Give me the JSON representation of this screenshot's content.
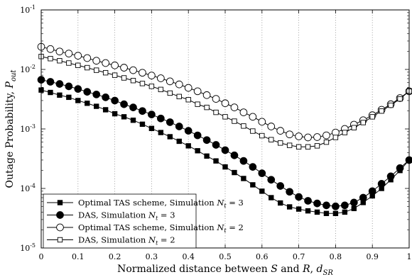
{
  "chart_data": {
    "type": "line",
    "x_label": "Normalized distance between S and R, d_SR",
    "y_label": "Outage Probability, P_out",
    "y_scale": "log",
    "xlim": [
      0,
      1
    ],
    "ylim": [
      1e-05,
      0.1
    ],
    "x_ticks": [
      "0",
      "0.1",
      "0.2",
      "0.3",
      "0.4",
      "0.5",
      "0.6",
      "0.7",
      "0.8",
      "0.9",
      "1"
    ],
    "y_ticks": [
      {
        "base": "10",
        "exp": "-5"
      },
      {
        "base": "10",
        "exp": "-4"
      },
      {
        "base": "10",
        "exp": "-3"
      },
      {
        "base": "10",
        "exp": "-2"
      },
      {
        "base": "10",
        "exp": "-1"
      }
    ],
    "grid": "x-dotted",
    "legend_position": "bottom-left",
    "x": [
      0,
      0.025,
      0.05,
      0.075,
      0.1,
      0.125,
      0.15,
      0.175,
      0.2,
      0.225,
      0.25,
      0.275,
      0.3,
      0.325,
      0.35,
      0.375,
      0.4,
      0.425,
      0.45,
      0.475,
      0.5,
      0.525,
      0.55,
      0.575,
      0.6,
      0.625,
      0.65,
      0.675,
      0.7,
      0.725,
      0.75,
      0.775,
      0.8,
      0.825,
      0.85,
      0.875,
      0.9,
      0.925,
      0.95,
      0.975,
      1.0
    ],
    "series": [
      {
        "name": "Optimal TAS scheme, Simulation N_t = 3",
        "marker": "square",
        "fill": "filled",
        "values": [
          0.0045,
          0.0041,
          0.0037,
          0.0034,
          0.003,
          0.0027,
          0.0024,
          0.0021,
          0.0018,
          0.0016,
          0.0014,
          0.0012,
          0.00102,
          0.00087,
          0.00074,
          0.00062,
          0.00052,
          0.00043,
          0.00035,
          0.00029,
          0.00023,
          0.000185,
          0.000147,
          0.000115,
          9e-05,
          7e-05,
          5.7e-05,
          4.9e-05,
          4.5e-05,
          4.2e-05,
          4e-05,
          3.8e-05,
          3.8e-05,
          4e-05,
          4.6e-05,
          5.8e-05,
          7.5e-05,
          0.0001,
          0.00014,
          0.0002,
          0.0003
        ]
      },
      {
        "name": "DAS, Simulation N_t = 3",
        "marker": "circle",
        "fill": "filled",
        "values": [
          0.0067,
          0.0062,
          0.0057,
          0.0052,
          0.0047,
          0.0042,
          0.0038,
          0.0034,
          0.003,
          0.0026,
          0.0023,
          0.002,
          0.00175,
          0.0015,
          0.0013,
          0.0011,
          0.00093,
          0.00078,
          0.00065,
          0.00054,
          0.00044,
          0.00036,
          0.00029,
          0.00023,
          0.00018,
          0.00014,
          0.00011,
          8.8e-05,
          7.2e-05,
          6.2e-05,
          5.6e-05,
          5.2e-05,
          5e-05,
          5.2e-05,
          5.8e-05,
          7e-05,
          9e-05,
          0.00012,
          0.00016,
          0.00022,
          0.0003
        ]
      },
      {
        "name": "Optimal TAS scheme, Simulation N_t = 2",
        "marker": "circle",
        "fill": "open",
        "values": [
          0.024,
          0.022,
          0.02,
          0.0185,
          0.017,
          0.0155,
          0.014,
          0.0128,
          0.0117,
          0.0107,
          0.0097,
          0.0088,
          0.0079,
          0.0071,
          0.0063,
          0.0056,
          0.0049,
          0.0043,
          0.0037,
          0.0032,
          0.0027,
          0.0023,
          0.0019,
          0.0016,
          0.00132,
          0.0011,
          0.00093,
          0.00081,
          0.00075,
          0.00072,
          0.00073,
          0.00078,
          0.00087,
          0.001,
          0.00118,
          0.0014,
          0.0017,
          0.0021,
          0.0026,
          0.0033,
          0.0043
        ]
      },
      {
        "name": "DAS, Simulation N_t = 2",
        "marker": "square",
        "fill": "open",
        "values": [
          0.0165,
          0.0152,
          0.014,
          0.0128,
          0.0117,
          0.0107,
          0.0097,
          0.0088,
          0.008,
          0.0072,
          0.0065,
          0.0058,
          0.0052,
          0.0046,
          0.004,
          0.0035,
          0.0031,
          0.0026,
          0.0023,
          0.0019,
          0.0016,
          0.00135,
          0.00112,
          0.00092,
          0.00077,
          0.00066,
          0.00058,
          0.00053,
          0.0005,
          0.0005,
          0.00052,
          0.0006,
          0.00072,
          0.00087,
          0.00105,
          0.00128,
          0.0016,
          0.002,
          0.0025,
          0.0032,
          0.0043
        ]
      }
    ]
  }
}
